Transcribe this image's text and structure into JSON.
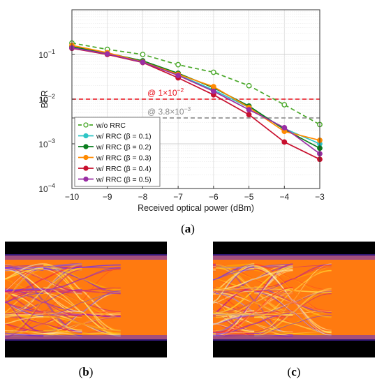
{
  "chart_data": {
    "type": "line",
    "xlabel": "Received optical power (dBm)",
    "ylabel": "BER",
    "xlim": [
      -10,
      -3
    ],
    "ylim": [
      0.0001,
      1
    ],
    "yscale": "log",
    "grid": true,
    "legend_position": "bottom-left",
    "x": [
      -10,
      -9,
      -8,
      -7,
      -6,
      -5,
      -4,
      -3
    ],
    "x_tick_labels": [
      "−10",
      "−9",
      "−8",
      "−7",
      "−6",
      "−5",
      "−4",
      "−3"
    ],
    "y_tick_labels": [
      {
        "base": "10",
        "exp": "−1",
        "value": 0.1
      },
      {
        "base": "10",
        "exp": "−2",
        "value": 0.01
      },
      {
        "base": "10",
        "exp": "−3",
        "value": 0.001
      },
      {
        "base": "10",
        "exp": "−4",
        "value": 0.0001
      }
    ],
    "series": [
      {
        "name": "w/o RRC",
        "color": "#4aa82a",
        "dashed": true,
        "marker": "open-circle",
        "values": [
          0.18,
          0.13,
          0.1,
          0.059,
          0.04,
          0.02,
          0.0075,
          0.0027
        ]
      },
      {
        "name": "w/ RRC (β = 0.1)",
        "color": "#2ec5c5",
        "dashed": false,
        "marker": "filled-circle",
        "values": [
          0.145,
          0.105,
          0.07,
          0.035,
          0.016,
          0.0065,
          0.0022,
          0.001
        ]
      },
      {
        "name": "w/ RRC (β = 0.2)",
        "color": "#0a7d1e",
        "dashed": false,
        "marker": "filled-circle",
        "values": [
          0.15,
          0.107,
          0.072,
          0.038,
          0.018,
          0.007,
          0.0021,
          0.0008
        ]
      },
      {
        "name": "w/ RRC (β = 0.3)",
        "color": "#ff8a00",
        "dashed": false,
        "marker": "filled-circle",
        "values": [
          0.16,
          0.11,
          0.068,
          0.036,
          0.019,
          0.0065,
          0.0019,
          0.0012
        ]
      },
      {
        "name": "w/ RRC (β = 0.4)",
        "color": "#c8102e",
        "dashed": false,
        "marker": "filled-circle",
        "values": [
          0.137,
          0.1,
          0.066,
          0.03,
          0.0125,
          0.0045,
          0.0011,
          0.00045
        ]
      },
      {
        "name": "w/ RRC (β = 0.5)",
        "color": "#9a2fa4",
        "dashed": false,
        "marker": "filled-circle",
        "values": [
          0.14,
          0.103,
          0.067,
          0.034,
          0.015,
          0.0058,
          0.0023,
          0.0006
        ]
      }
    ],
    "thresholds": [
      {
        "value": 0.01,
        "color": "#e8101c",
        "prefix": "@ ",
        "base": "1×10",
        "exp": "−2"
      },
      {
        "value": 0.0038,
        "color": "#8c8c8c",
        "prefix": "@ ",
        "base": "3.8×10",
        "exp": "−3"
      }
    ]
  },
  "captions": {
    "a": {
      "open": "(",
      "letter": "a",
      "close": ")"
    },
    "b": {
      "open": "(",
      "letter": "b",
      "close": ")"
    },
    "c": {
      "open": "(",
      "letter": "c",
      "close": ")"
    }
  }
}
